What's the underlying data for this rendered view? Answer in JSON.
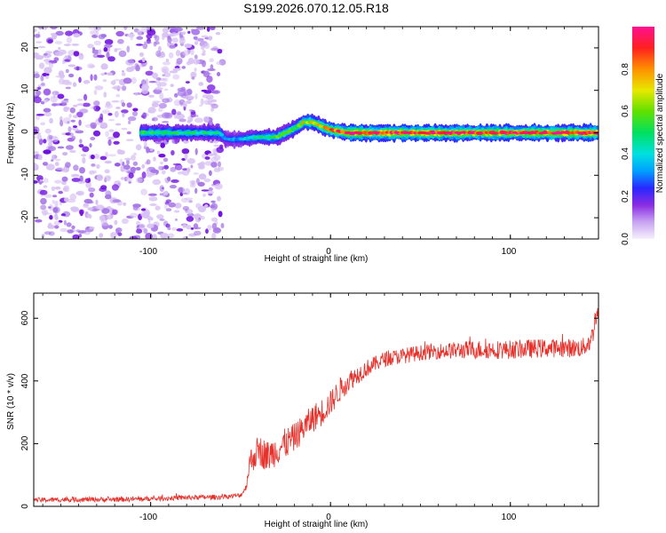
{
  "page_title": "S199.2026.070.12.05.R18",
  "colors": {
    "snr_line": "#e8302a",
    "ridge_core": "#e8205a",
    "noise_light": "#d8c2f4",
    "noise_mid": "#a777e8",
    "noise_dark": "#7010e0",
    "frame": "#000000"
  },
  "chart_data": [
    {
      "type": "heatmap",
      "title": "S199.2026.070.12.05.R18",
      "xlabel": "Height of straight line (km)",
      "ylabel": "Frequency (Hz)",
      "xlim": [
        -165,
        149
      ],
      "ylim": [
        -25,
        25
      ],
      "xticks": [
        -100,
        0,
        100
      ],
      "yticks": [
        -20,
        -10,
        0,
        10,
        20
      ],
      "xtick_labels": [
        "-100",
        "0",
        "100"
      ],
      "ytick_labels": [
        "-20",
        "-10",
        "0",
        "10",
        "20"
      ],
      "noise_region_x": [
        -165,
        -60
      ],
      "ridge": {
        "x": [
          -105,
          -62,
          -58,
          -50,
          -40,
          -30,
          -20,
          -15,
          -10,
          -5,
          0,
          10,
          149
        ],
        "freq": [
          0,
          0,
          -1.5,
          -1.5,
          -1,
          -1,
          1,
          2.5,
          2.5,
          1.5,
          0.7,
          0,
          0
        ],
        "amplitude": [
          0.5,
          0.45,
          0.3,
          0.35,
          0.45,
          0.55,
          0.55,
          0.7,
          0.7,
          0.75,
          0.8,
          0.95,
          0.95
        ]
      },
      "colorbar": {
        "label": "Normalized spectral amplitude",
        "range": [
          0,
          1
        ],
        "ticks": [
          0.0,
          0.2,
          0.4,
          0.6,
          0.8
        ],
        "tick_labels": [
          "0.0",
          "0.2",
          "0.4",
          "0.6",
          "0.8"
        ]
      }
    },
    {
      "type": "line",
      "xlabel": "Height of straight line (km)",
      "ylabel": "SNR (10 * v/v)",
      "xlim": [
        -165,
        149
      ],
      "ylim": [
        0,
        680
      ],
      "xticks": [
        -100,
        0,
        100
      ],
      "yticks": [
        0,
        200,
        400,
        600
      ],
      "xtick_labels": [
        "-100",
        "0",
        "100"
      ],
      "ytick_labels": [
        "0",
        "200",
        "400",
        "600"
      ],
      "series": [
        {
          "name": "SNR",
          "x": [
            -165,
            -140,
            -120,
            -100,
            -80,
            -60,
            -50,
            -47,
            -45,
            -40,
            -35,
            -30,
            -25,
            -20,
            -15,
            -10,
            -5,
            0,
            5,
            10,
            15,
            20,
            25,
            30,
            40,
            50,
            60,
            80,
            100,
            120,
            140,
            145,
            148,
            149
          ],
          "y": [
            20,
            22,
            22,
            24,
            28,
            30,
            35,
            60,
            140,
            180,
            160,
            180,
            200,
            220,
            250,
            280,
            300,
            330,
            370,
            400,
            420,
            440,
            455,
            470,
            480,
            490,
            495,
            500,
            500,
            505,
            505,
            530,
            620,
            640
          ],
          "noise_amplitude": [
            8,
            8,
            8,
            8,
            8,
            8,
            8,
            10,
            40,
            50,
            50,
            50,
            50,
            45,
            45,
            45,
            45,
            40,
            40,
            35,
            30,
            28,
            25,
            25,
            25,
            25,
            25,
            30,
            30,
            30,
            30,
            35,
            40,
            40
          ]
        }
      ]
    }
  ]
}
